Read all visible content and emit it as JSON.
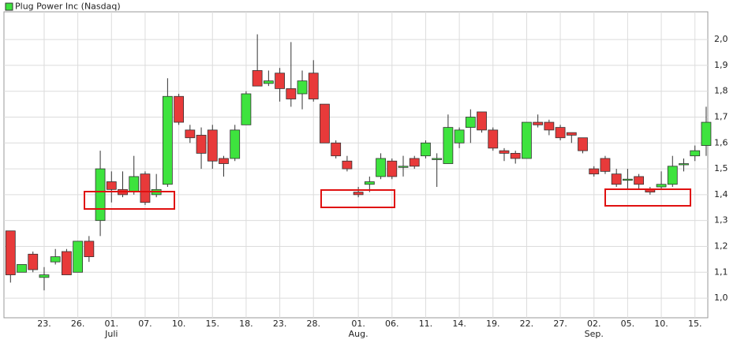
{
  "chart_data": {
    "type": "candlestick",
    "legend": "Plug Power Inc (Nasdaq)",
    "up_color": "#3ee33e",
    "down_color": "#e83a3a",
    "legend_color": "#3ee33e",
    "categories": [
      null,
      null,
      null,
      "23.",
      null,
      null,
      "26.",
      null,
      null,
      "01.",
      null,
      null,
      "07.",
      null,
      null,
      "10.",
      null,
      null,
      "15.",
      null,
      null,
      "18.",
      null,
      null,
      "23.",
      null,
      null,
      "28.",
      null,
      null,
      null,
      "01.",
      null,
      null,
      "06.",
      null,
      null,
      "11.",
      null,
      null,
      "14.",
      null,
      null,
      "19.",
      null,
      null,
      "22.",
      null,
      null,
      "27.",
      null,
      null,
      "02.",
      null,
      null,
      "05.",
      null,
      null,
      "10.",
      null,
      null,
      "15.",
      null
    ],
    "category_months": [
      null,
      null,
      null,
      null,
      null,
      null,
      null,
      null,
      null,
      "Juli",
      null,
      null,
      null,
      null,
      null,
      null,
      null,
      null,
      null,
      null,
      null,
      null,
      null,
      null,
      null,
      null,
      null,
      null,
      null,
      null,
      null,
      "Aug.",
      null,
      null,
      null,
      null,
      null,
      null,
      null,
      null,
      null,
      null,
      null,
      null,
      null,
      null,
      null,
      null,
      null,
      null,
      null,
      null,
      "Sep.",
      null,
      null,
      null,
      null,
      null,
      null,
      null,
      null,
      null,
      null
    ],
    "open": [
      1.26,
      1.1,
      1.17,
      1.08,
      1.14,
      1.18,
      1.1,
      1.22,
      1.3,
      1.45,
      1.42,
      1.41,
      1.48,
      1.4,
      1.44,
      1.78,
      1.65,
      1.63,
      1.65,
      1.54,
      1.54,
      1.67,
      1.88,
      1.83,
      1.87,
      1.81,
      1.79,
      1.87,
      1.75,
      1.6,
      1.53,
      1.41,
      1.44,
      1.47,
      1.53,
      1.51,
      1.54,
      1.55,
      1.54,
      1.52,
      1.6,
      1.66,
      1.72,
      1.65,
      1.57,
      1.56,
      1.54,
      1.68,
      1.68,
      1.66,
      1.64,
      1.62,
      1.5,
      1.54,
      1.48,
      1.46,
      1.47,
      1.42,
      1.43,
      1.44,
      1.52,
      1.55,
      1.59
    ],
    "high": [
      1.26,
      1.13,
      1.18,
      1.12,
      1.19,
      1.19,
      1.22,
      1.24,
      1.57,
      1.49,
      1.49,
      1.55,
      1.49,
      1.48,
      1.85,
      1.79,
      1.67,
      1.66,
      1.67,
      1.55,
      1.67,
      1.8,
      2.02,
      1.88,
      1.89,
      1.99,
      1.88,
      1.92,
      1.75,
      1.61,
      1.55,
      1.43,
      1.47,
      1.56,
      1.54,
      1.55,
      1.55,
      1.61,
      1.56,
      1.71,
      1.66,
      1.73,
      1.72,
      1.66,
      1.58,
      1.57,
      1.68,
      1.71,
      1.69,
      1.67,
      1.64,
      1.62,
      1.51,
      1.55,
      1.5,
      1.5,
      1.48,
      1.43,
      1.49,
      1.55,
      1.54,
      1.59,
      1.74
    ],
    "low": [
      1.06,
      1.1,
      1.1,
      1.03,
      1.13,
      1.09,
      1.1,
      1.14,
      1.24,
      1.37,
      1.39,
      1.4,
      1.36,
      1.39,
      1.43,
      1.67,
      1.6,
      1.5,
      1.5,
      1.47,
      1.53,
      1.67,
      1.82,
      1.82,
      1.76,
      1.74,
      1.73,
      1.76,
      1.6,
      1.54,
      1.49,
      1.39,
      1.41,
      1.46,
      1.46,
      1.47,
      1.5,
      1.54,
      1.43,
      1.52,
      1.58,
      1.6,
      1.64,
      1.57,
      1.53,
      1.52,
      1.54,
      1.66,
      1.63,
      1.61,
      1.6,
      1.56,
      1.47,
      1.48,
      1.43,
      1.42,
      1.42,
      1.4,
      1.42,
      1.43,
      1.49,
      1.53,
      1.55
    ],
    "close": [
      1.09,
      1.13,
      1.11,
      1.09,
      1.16,
      1.09,
      1.22,
      1.16,
      1.5,
      1.42,
      1.4,
      1.47,
      1.37,
      1.42,
      1.78,
      1.68,
      1.62,
      1.56,
      1.53,
      1.52,
      1.65,
      1.79,
      1.82,
      1.84,
      1.81,
      1.77,
      1.84,
      1.77,
      1.6,
      1.55,
      1.5,
      1.4,
      1.45,
      1.54,
      1.47,
      1.51,
      1.51,
      1.6,
      1.54,
      1.66,
      1.65,
      1.7,
      1.65,
      1.58,
      1.56,
      1.54,
      1.68,
      1.67,
      1.65,
      1.62,
      1.63,
      1.57,
      1.48,
      1.49,
      1.44,
      1.46,
      1.44,
      1.41,
      1.44,
      1.51,
      1.52,
      1.57,
      1.68
    ],
    "ylim": [
      0.924,
      2.107
    ],
    "yticks": [
      {
        "value": 1.0,
        "label": "1,0"
      },
      {
        "value": 1.1,
        "label": "1,1"
      },
      {
        "value": 1.2,
        "label": "1,2"
      },
      {
        "value": 1.3,
        "label": "1,3"
      },
      {
        "value": 1.4,
        "label": "1,4"
      },
      {
        "value": 1.5,
        "label": "1,5"
      },
      {
        "value": 1.6,
        "label": "1,6"
      },
      {
        "value": 1.7,
        "label": "1,7"
      },
      {
        "value": 1.8,
        "label": "1,8"
      },
      {
        "value": 1.9,
        "label": "1,9"
      },
      {
        "value": 2.0,
        "label": "2,0"
      }
    ],
    "grid": true
  }
}
